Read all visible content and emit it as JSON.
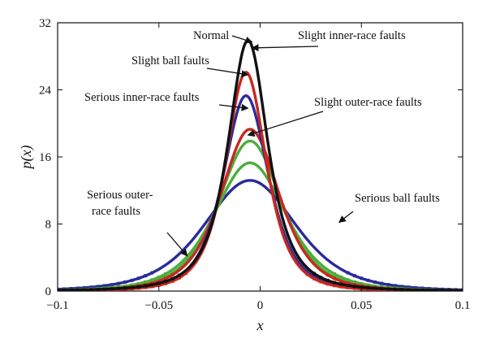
{
  "chart_data": {
    "type": "line",
    "title": "",
    "xlabel": "x",
    "ylabel": "p(x)",
    "xlim": [
      -0.1,
      0.1
    ],
    "ylim": [
      0,
      32
    ],
    "xticks": [
      -0.1,
      -0.05,
      0,
      0.05,
      0.1
    ],
    "xtick_labels": [
      "−0.1",
      "−0.05",
      "0",
      "0.05",
      "0.1"
    ],
    "yticks": [
      0,
      8,
      16,
      24,
      32
    ],
    "ytick_labels": [
      "0",
      "8",
      "16",
      "24",
      "32"
    ],
    "grid": false,
    "series": [
      {
        "name": "Normal",
        "color": "#111111",
        "peak": 29.9,
        "center": -0.006,
        "sigma": 0.0125,
        "tail": 1.6
      },
      {
        "name": "Slight inner-race faults",
        "color": "#c8281e",
        "peak": 26.1,
        "center": -0.007,
        "sigma": 0.013,
        "tail": 1.9
      },
      {
        "name": "Slight ball faults",
        "color": "#2b2a9a",
        "peak": 23.3,
        "center": -0.007,
        "sigma": 0.0145,
        "tail": 2.0
      },
      {
        "name": "Serious inner-race faults",
        "color": "#c8281e",
        "peak": 19.3,
        "center": -0.005,
        "sigma": 0.019,
        "tail": 2.2
      },
      {
        "name": "Slight outer-race faults",
        "color": "#4cae3c",
        "peak": 17.9,
        "center": -0.005,
        "sigma": 0.0205,
        "tail": 2.3
      },
      {
        "name": "Serious outer-race faults",
        "color": "#4cae3c",
        "peak": 15.3,
        "center": -0.005,
        "sigma": 0.0235,
        "tail": 2.4
      },
      {
        "name": "Serious ball faults",
        "color": "#2b2a9a",
        "peak": 13.2,
        "center": -0.005,
        "sigma": 0.03,
        "tail": 2.6
      }
    ],
    "annotations": [
      {
        "text": "Normal",
        "target": [
          -0.004,
          29.7
        ]
      },
      {
        "text": "Slight inner-race faults",
        "target": [
          -0.004,
          29.0
        ]
      },
      {
        "text": "Slight ball faults",
        "target": [
          -0.006,
          25.8
        ]
      },
      {
        "text": "Serious inner-race faults",
        "target": [
          -0.006,
          21.8
        ]
      },
      {
        "text": "Slight outer-race faults",
        "target": [
          -0.006,
          18.6
        ]
      },
      {
        "text": "Serious outer-",
        "text2": "race faults",
        "target": [
          -0.036,
          4.2
        ]
      },
      {
        "text": "Serious ball faults",
        "target": [
          0.039,
          8.2
        ]
      }
    ]
  }
}
